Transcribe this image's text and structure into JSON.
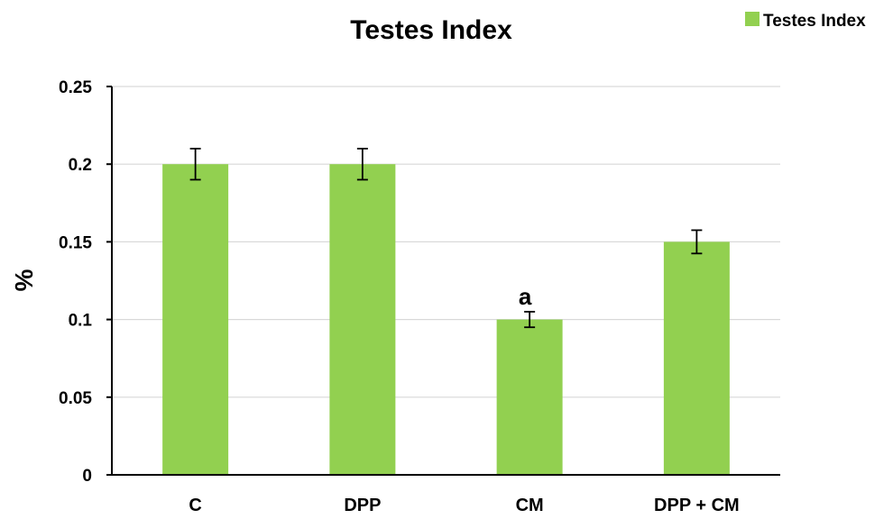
{
  "chart_data": {
    "type": "bar",
    "title": "Testes Index",
    "xlabel": "",
    "ylabel": "%",
    "categories": [
      "C",
      "DPP",
      "CM",
      "DPP + CM"
    ],
    "series": [
      {
        "name": "Testes Index",
        "color": "#92d050",
        "values": [
          0.2,
          0.2,
          0.1,
          0.15
        ],
        "errors": [
          0.01,
          0.01,
          0.005,
          0.0075
        ]
      }
    ],
    "ylim": [
      0,
      0.25
    ],
    "yticks": [
      0,
      0.05,
      0.1,
      0.15,
      0.2,
      0.25
    ],
    "ytick_labels": [
      "0",
      "0.05",
      "0.1",
      "0.15",
      "0.2",
      "0.25"
    ],
    "grid": true,
    "legend_position": "top-right",
    "annotations": [
      {
        "category": "CM",
        "text": "a"
      }
    ]
  }
}
